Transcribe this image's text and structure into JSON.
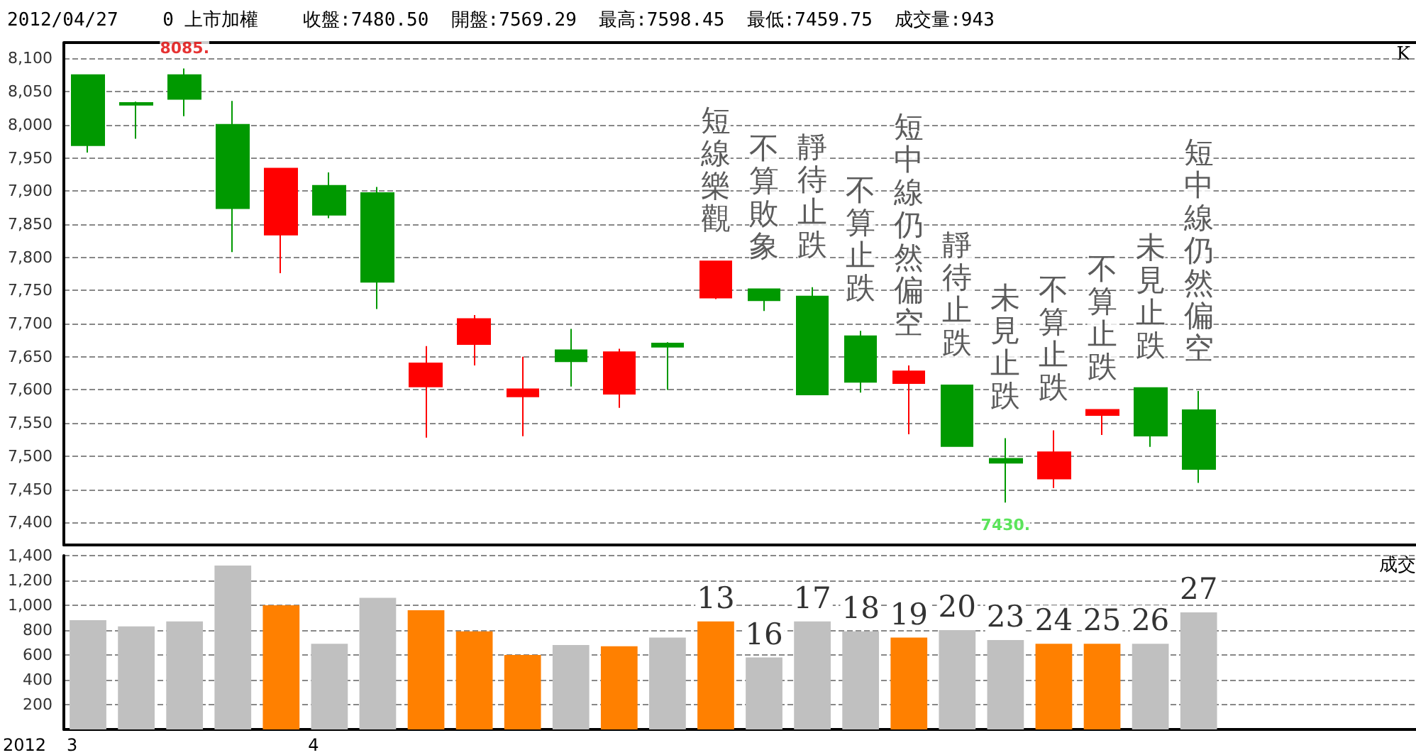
{
  "chart_data": [
    {
      "type": "candlestick",
      "title": "2012/04/27    0 上市加權    收盤:7480.50  開盤:7569.29  最高:7598.45  最低:7459.75  成交量:943",
      "ylabel": "K",
      "categories": [
        null,
        null,
        null,
        null,
        null,
        null,
        null,
        null,
        null,
        null,
        null,
        null,
        null,
        "13",
        "16",
        "17",
        "18",
        "19",
        "20",
        "23",
        "24",
        "25",
        "26",
        "27"
      ],
      "ohlc": [
        [
          8075,
          8075,
          7958,
          7969
        ],
        [
          8033,
          8035,
          7979,
          8030
        ],
        [
          8075,
          8085,
          8013,
          8039
        ],
        [
          8000,
          8036,
          7808,
          7874
        ],
        [
          7834,
          7934,
          7776,
          7934
        ],
        [
          7908,
          7928,
          7859,
          7864
        ],
        [
          7897,
          7906,
          7722,
          7763
        ],
        [
          7605,
          7666,
          7528,
          7640
        ],
        [
          7669,
          7713,
          7637,
          7707
        ],
        [
          7590,
          7650,
          7530,
          7601
        ],
        [
          7660,
          7692,
          7605,
          7643
        ],
        [
          7594,
          7662,
          7573,
          7657
        ],
        [
          7670,
          7672,
          7600,
          7665
        ],
        [
          7739,
          7794,
          7737,
          7794
        ],
        [
          7752,
          7752,
          7719,
          7735
        ],
        [
          7741,
          7755,
          7593,
          7593
        ],
        [
          7681,
          7689,
          7596,
          7612
        ],
        [
          7610,
          7637,
          7533,
          7628
        ],
        [
          7607,
          7607,
          7515,
          7515
        ],
        [
          7496,
          7527,
          7430,
          7490
        ],
        [
          7466,
          7539,
          7452,
          7506
        ],
        [
          7562,
          7570,
          7532,
          7570
        ],
        [
          7603,
          7603,
          7514,
          7531
        ],
        [
          7569.29,
          7598.45,
          7459.75,
          7480.5
        ]
      ],
      "colors": [
        "#009900",
        "#009900",
        "#009900",
        "#009900",
        "#ff0000",
        "#009900",
        "#009900",
        "#ff0000",
        "#ff0000",
        "#ff0000",
        "#009900",
        "#ff0000",
        "#009900",
        "#ff0000",
        "#009900",
        "#009900",
        "#009900",
        "#ff0000",
        "#009900",
        "#009900",
        "#ff0000",
        "#ff0000",
        "#009900",
        "#009900"
      ],
      "ylim": [
        7366,
        8124
      ],
      "yticks": [
        {
          "value": 7400,
          "label": "7,400"
        },
        {
          "value": 7450,
          "label": "7,450"
        },
        {
          "value": 7500,
          "label": "7,500"
        },
        {
          "value": 7550,
          "label": "7,550"
        },
        {
          "value": 7600,
          "label": "7,600"
        },
        {
          "value": 7650,
          "label": "7,650"
        },
        {
          "value": 7700,
          "label": "7,700"
        },
        {
          "value": 7750,
          "label": "7,750"
        },
        {
          "value": 7800,
          "label": "7,800"
        },
        {
          "value": 7850,
          "label": "7,850"
        },
        {
          "value": 7900,
          "label": "7,900"
        },
        {
          "value": 7950,
          "label": "7,950"
        },
        {
          "value": 8000,
          "label": "8,000"
        },
        {
          "value": 8050,
          "label": "8,050"
        },
        {
          "value": 8100,
          "label": "8,100"
        }
      ],
      "tick_labels": "y",
      "grid": "y",
      "line_style": "dashed",
      "annotations": [
        {
          "text": "8085.",
          "y": 8085
        },
        {
          "text": "7430.",
          "y": 7430
        },
        "短線樂觀",
        "不算敗象",
        "靜待止跌",
        "不算止跌",
        "短中線仍然偏空",
        "靜待止跌",
        "未見止跌",
        "不算止跌",
        "不算止跌",
        "未見止跌",
        "短中線仍然偏空"
      ]
    },
    {
      "type": "bar",
      "ylabel": "成交",
      "categories": [
        null,
        null,
        null,
        null,
        null,
        null,
        null,
        null,
        null,
        null,
        null,
        null,
        null,
        "13",
        "16",
        "17",
        "18",
        "19",
        "20",
        "23",
        "24",
        "25",
        "26",
        "27"
      ],
      "values": [
        880,
        830,
        870,
        1320,
        1000,
        690,
        1060,
        960,
        790,
        600,
        680,
        670,
        740,
        870,
        580,
        870,
        790,
        740,
        800,
        720,
        690,
        690,
        690,
        943
      ],
      "colors": [
        "#c0c0c0",
        "#c0c0c0",
        "#c0c0c0",
        "#c0c0c0",
        "#ff8000",
        "#c0c0c0",
        "#c0c0c0",
        "#ff8000",
        "#ff8000",
        "#ff8000",
        "#c0c0c0",
        "#ff8000",
        "#c0c0c0",
        "#ff8000",
        "#c0c0c0",
        "#c0c0c0",
        "#c0c0c0",
        "#ff8000",
        "#c0c0c0",
        "#c0c0c0",
        "#ff8000",
        "#ff8000",
        "#c0c0c0",
        "#c0c0c0"
      ],
      "ylim": [
        0,
        1400
      ],
      "yticks": [
        200,
        400,
        600,
        800,
        {
          "value": 1000,
          "label": "1,000"
        },
        {
          "value": 1200,
          "label": "1,200"
        },
        {
          "value": 1400,
          "label": "1,400"
        }
      ],
      "grid": "y",
      "line_style": "dashed",
      "annotations": [
        "2012",
        "3",
        "4"
      ]
    }
  ]
}
